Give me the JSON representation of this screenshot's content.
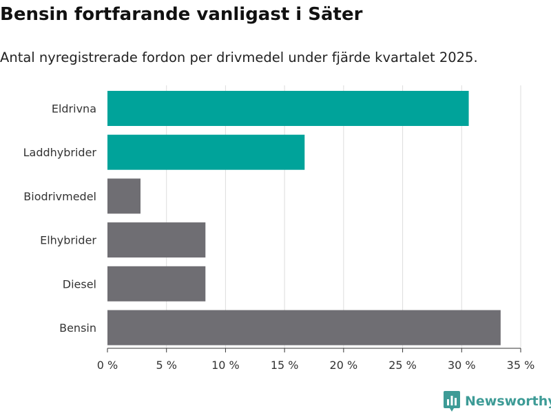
{
  "header": {
    "title": "Bensin fortfarande vanligast i Säter",
    "subtitle": "Antal nyregistrerade fordon per drivmedel under fjärde kvartalet 2025."
  },
  "brand": {
    "name": "Newsworthy",
    "icon": "bar-chart-badge-icon",
    "color": "#3d9b96"
  },
  "colors": {
    "highlight": "#00a39a",
    "default": "#6f6e73",
    "grid": "#dddddd",
    "axis": "#333333"
  },
  "chart_data": {
    "type": "bar",
    "orientation": "horizontal",
    "title": "Bensin fortfarande vanligast i Säter",
    "subtitle": "Antal nyregistrerade fordon per drivmedel under fjärde kvartalet 2025.",
    "categories": [
      "Eldrivna",
      "Laddhybrider",
      "Biodrivmedel",
      "Elhybrider",
      "Diesel",
      "Bensin"
    ],
    "values": [
      30.6,
      16.7,
      2.8,
      8.3,
      8.3,
      33.3
    ],
    "highlighted": [
      true,
      true,
      false,
      false,
      false,
      false
    ],
    "unit": "%",
    "xlim": [
      0,
      35
    ],
    "xticks": [
      0,
      5,
      10,
      15,
      20,
      25,
      30,
      35
    ],
    "xtick_labels": [
      "0 %",
      "5 %",
      "10 %",
      "15 %",
      "20 %",
      "25 %",
      "30 %",
      "35 %"
    ],
    "xlabel": "",
    "ylabel": "",
    "grid": true
  }
}
